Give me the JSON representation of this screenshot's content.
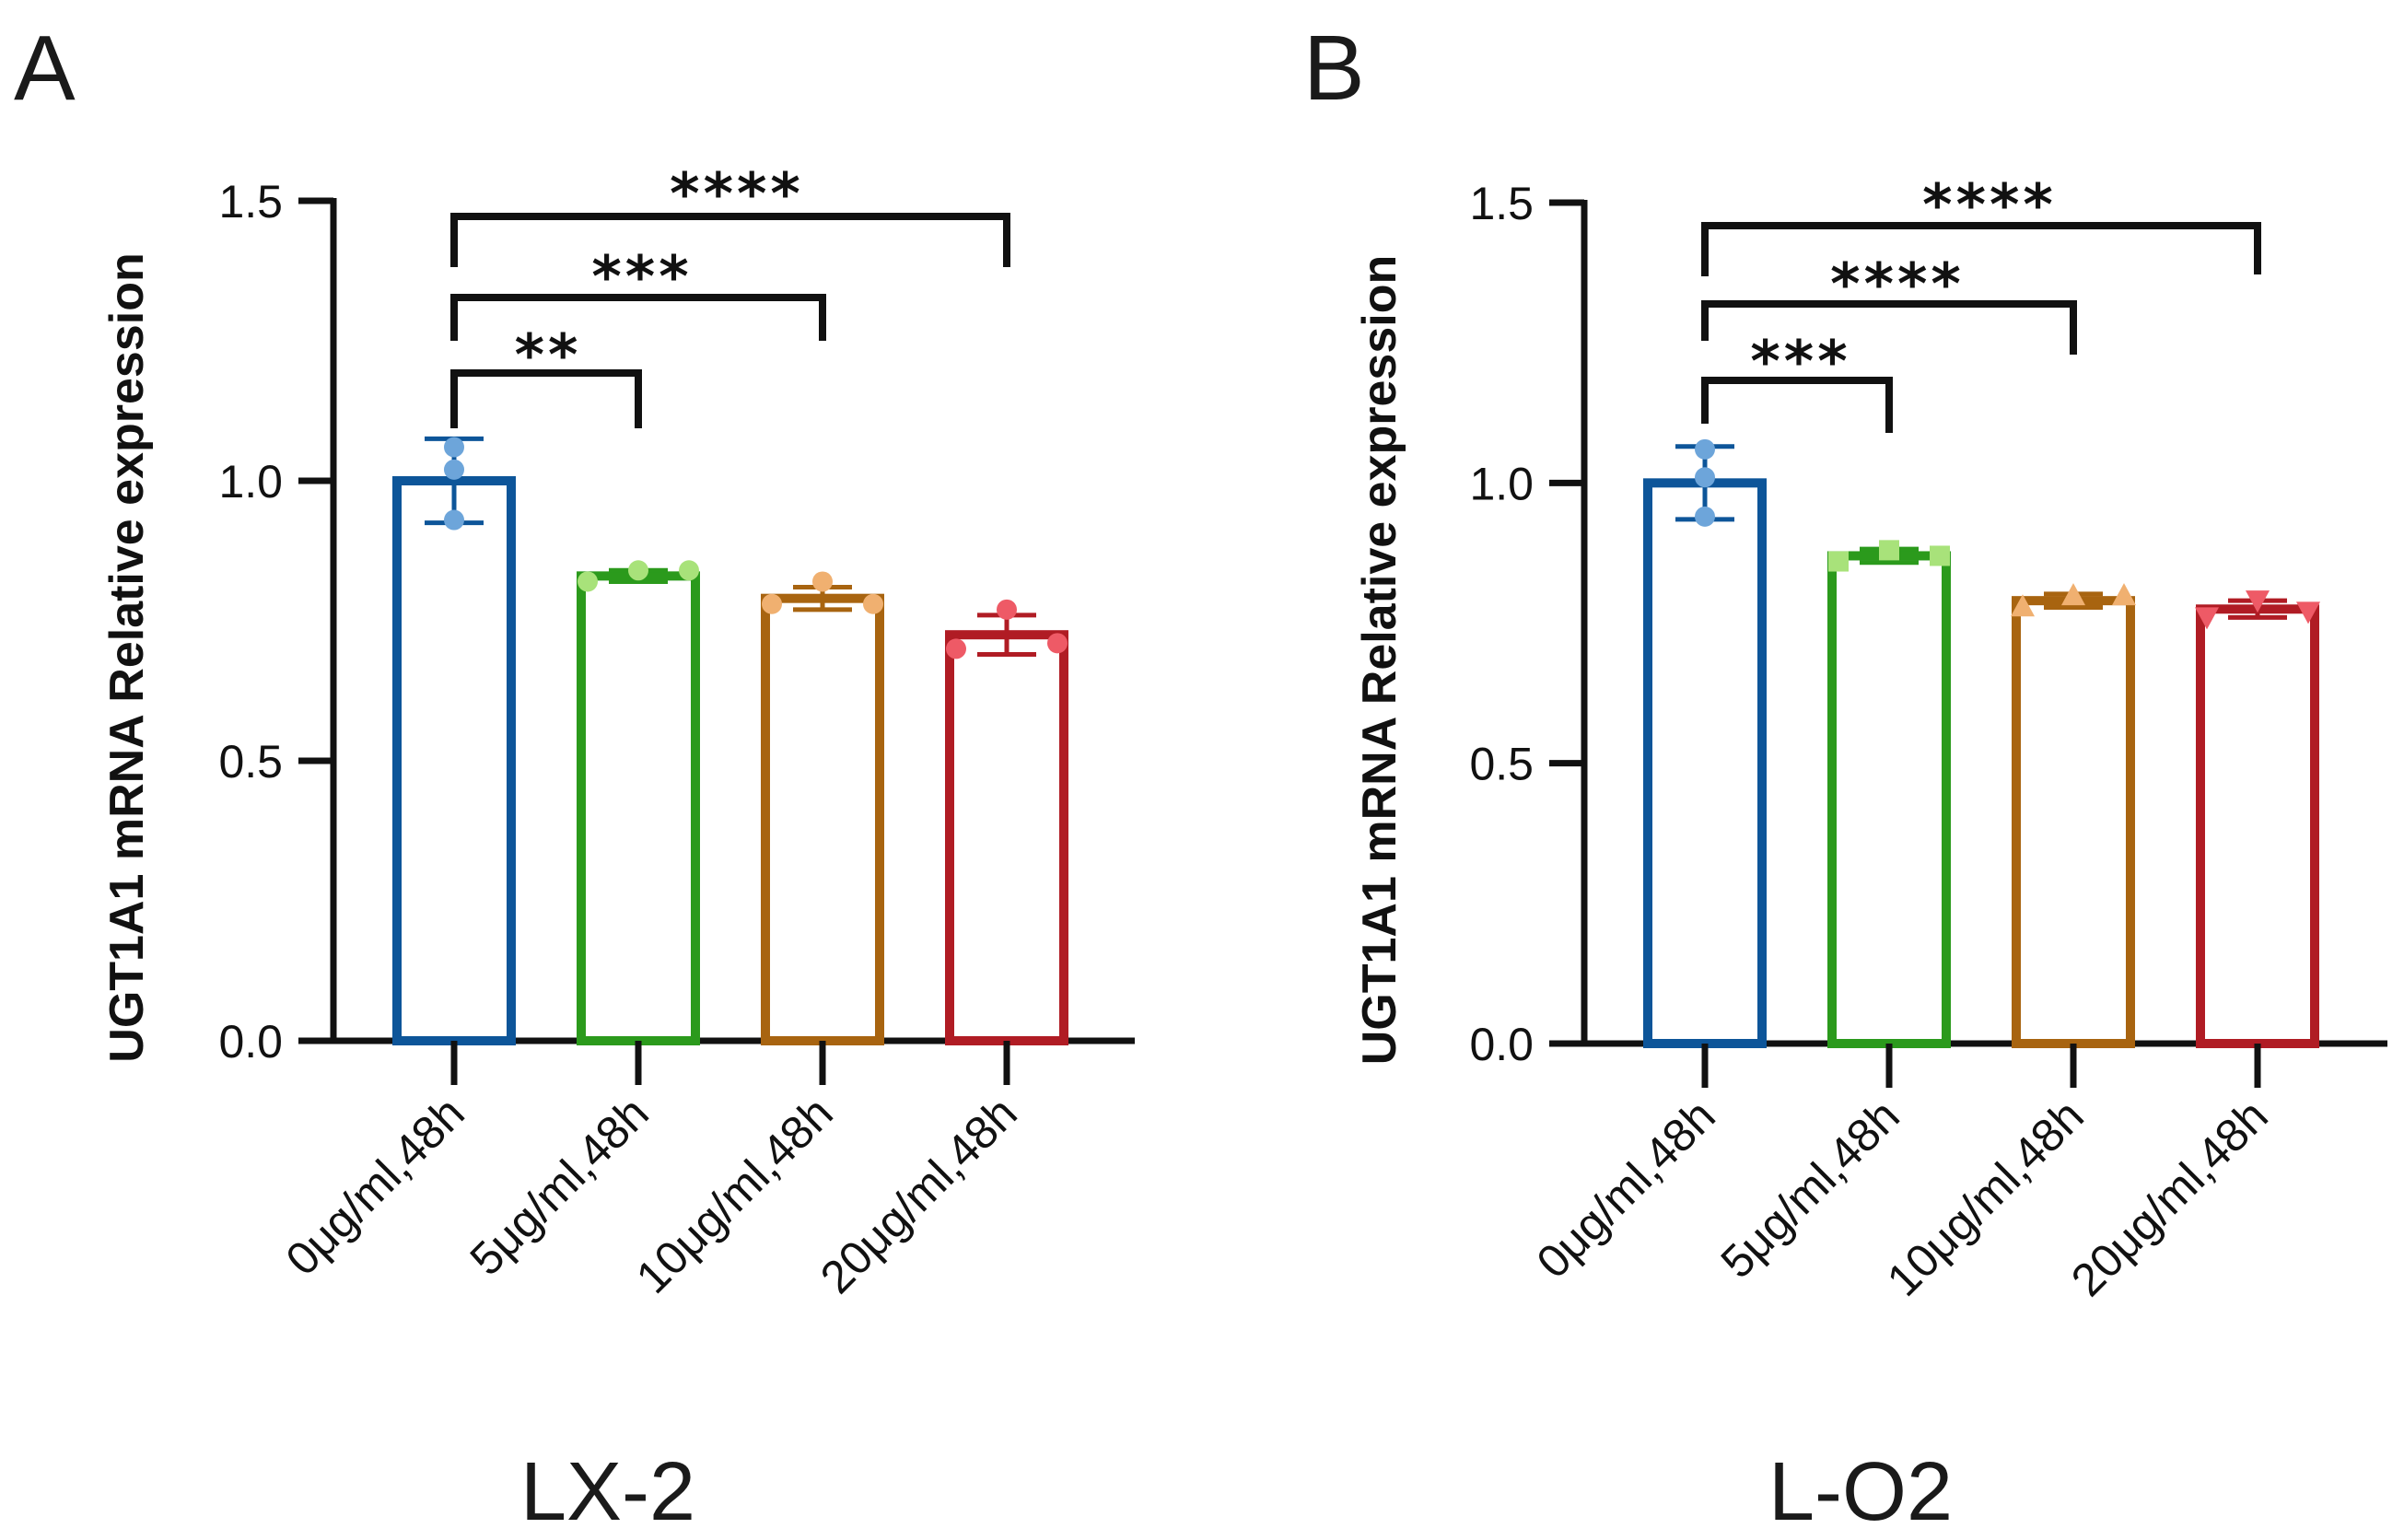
{
  "chart_data": [
    {
      "type": "bar",
      "panel_label": "A",
      "cell_line": "LX-2",
      "ylabel": "UGT1A1 mRNA Relative expression",
      "ylim": [
        0,
        1.5
      ],
      "yticks": [
        "0.0",
        "0.5",
        "1.0",
        "1.5"
      ],
      "categories": [
        "0μg/ml,48h",
        "5μg/ml,48h",
        "10μg/ml,48h",
        "20μg/ml,48h"
      ],
      "values": [
        1.0,
        0.83,
        0.79,
        0.725
      ],
      "sd": [
        0.075,
        0.01,
        0.02,
        0.035
      ],
      "points": [
        [
          1.06,
          1.02,
          0.93
        ],
        [
          0.82,
          0.84,
          0.84
        ],
        [
          0.78,
          0.82,
          0.78
        ],
        [
          0.7,
          0.77,
          0.71
        ]
      ],
      "marker": [
        "circle",
        "circle",
        "circle",
        "circle"
      ],
      "colors": [
        "#0d5599",
        "#2b9a1c",
        "#a86410",
        "#b01c24"
      ],
      "point_colors": [
        "#6da5da",
        "#a8e27a",
        "#f0b070",
        "#ee5a66"
      ],
      "comparisons": [
        {
          "from": 0,
          "to": 1,
          "label": "**"
        },
        {
          "from": 0,
          "to": 2,
          "label": "***"
        },
        {
          "from": 0,
          "to": 3,
          "label": "****"
        }
      ]
    },
    {
      "type": "bar",
      "panel_label": "B",
      "cell_line": "L-O2",
      "ylabel": "UGT1A1 mRNA Relative expression",
      "ylim": [
        0,
        1.5
      ],
      "yticks": [
        "0.0",
        "0.5",
        "1.0",
        "1.5"
      ],
      "categories": [
        "0μg/ml,48h",
        "5μg/ml,48h",
        "10μg/ml,48h",
        "20μg/ml,48h"
      ],
      "values": [
        1.0,
        0.87,
        0.79,
        0.775
      ],
      "sd": [
        0.065,
        0.012,
        0.012,
        0.015
      ],
      "points": [
        [
          1.06,
          1.01,
          0.94
        ],
        [
          0.86,
          0.88,
          0.87
        ],
        [
          0.78,
          0.8,
          0.8
        ],
        [
          0.76,
          0.79,
          0.77
        ]
      ],
      "marker": [
        "circle",
        "square",
        "triangle-up",
        "triangle-down"
      ],
      "colors": [
        "#0d5599",
        "#2b9a1c",
        "#a86410",
        "#b01c24"
      ],
      "point_colors": [
        "#6da5da",
        "#a8e27a",
        "#f0b070",
        "#ee5a66"
      ],
      "comparisons": [
        {
          "from": 0,
          "to": 1,
          "label": "***"
        },
        {
          "from": 0,
          "to": 2,
          "label": "****"
        },
        {
          "from": 0,
          "to": 3,
          "label": "****"
        }
      ]
    }
  ]
}
